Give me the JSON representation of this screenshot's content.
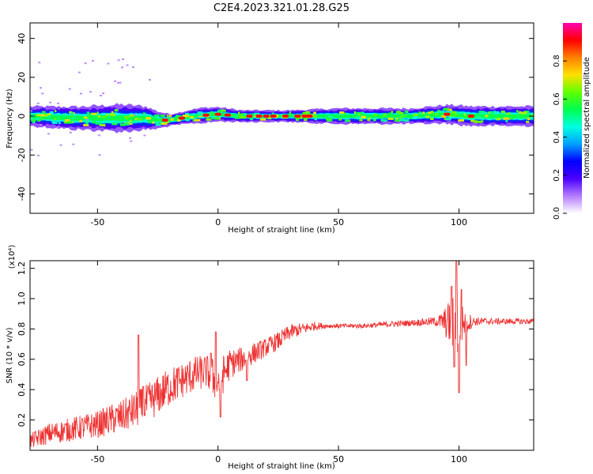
{
  "title": "C2E4.2023.321.01.28.G25",
  "chart_data": [
    {
      "type": "heatmap",
      "xlabel": "Height of straight line (km)",
      "ylabel": "Frequency (Hz)",
      "xlim": [
        -78,
        131
      ],
      "ylim": [
        -50,
        48
      ],
      "xticks": [
        -50,
        0,
        50,
        100
      ],
      "yticks": [
        -40,
        -20,
        0,
        20,
        40
      ],
      "band": {
        "center_hz": [
          [
            -78,
            0
          ],
          [
            -60,
            -1
          ],
          [
            -45,
            -1
          ],
          [
            -30,
            -1
          ],
          [
            -25,
            -2
          ],
          [
            -20,
            -2
          ],
          [
            -10,
            0
          ],
          [
            0,
            1
          ],
          [
            10,
            0
          ],
          [
            20,
            0
          ],
          [
            40,
            0
          ],
          [
            60,
            0
          ],
          [
            80,
            0
          ],
          [
            95,
            1
          ],
          [
            105,
            0
          ],
          [
            131,
            0
          ]
        ],
        "halfwidth_hz": [
          [
            -78,
            5
          ],
          [
            -55,
            6
          ],
          [
            -40,
            7
          ],
          [
            -30,
            6
          ],
          [
            -20,
            3
          ],
          [
            -5,
            4
          ],
          [
            10,
            3
          ],
          [
            30,
            3
          ],
          [
            50,
            4
          ],
          [
            80,
            4
          ],
          [
            100,
            5
          ],
          [
            131,
            5
          ]
        ]
      },
      "hot_spots_x": [
        -22,
        -15,
        -5,
        0,
        4,
        13,
        17,
        20,
        23,
        28,
        33,
        36,
        38,
        95,
        105
      ]
    },
    {
      "type": "colorbar",
      "label": "Normalized spectral amplitude",
      "range": [
        0,
        1
      ],
      "ticks": [
        "0.0",
        "0.2",
        "0.4",
        "0.6",
        "0.8"
      ],
      "tick_values": [
        0,
        0.2,
        0.4,
        0.6,
        0.8
      ],
      "colormap": [
        "#ffffff",
        "#b57cff",
        "#4a00ff",
        "#0000ff",
        "#00a0ff",
        "#00ffe0",
        "#00ff50",
        "#60ff00",
        "#ffe000",
        "#ff8000",
        "#ff0000",
        "#ff00b0"
      ]
    },
    {
      "type": "line",
      "xlabel": "Height of straight line (km)",
      "ylabel": "SNR (10 * v/v)",
      "y_multiplier": "(x10⁴)",
      "xlim": [
        -78,
        131
      ],
      "ylim": [
        0,
        1.25
      ],
      "xticks": [
        -50,
        0,
        50,
        100
      ],
      "yticks": [
        0.2,
        0.4,
        0.6,
        0.8,
        1.0,
        1.2
      ],
      "ytick_labels": [
        "0.2",
        "0.4",
        "0.6",
        "0.8",
        "1.0",
        "1.2"
      ],
      "color": "#ee3333",
      "envelope": [
        [
          -78,
          0.06,
          0.05
        ],
        [
          -70,
          0.11,
          0.07
        ],
        [
          -60,
          0.14,
          0.08
        ],
        [
          -50,
          0.17,
          0.09
        ],
        [
          -45,
          0.2,
          0.1
        ],
        [
          -40,
          0.22,
          0.11
        ],
        [
          -35,
          0.26,
          0.12
        ],
        [
          -30,
          0.3,
          0.13
        ],
        [
          -25,
          0.36,
          0.13
        ],
        [
          -20,
          0.42,
          0.13
        ],
        [
          -15,
          0.46,
          0.12
        ],
        [
          -10,
          0.5,
          0.12
        ],
        [
          -5,
          0.52,
          0.11
        ],
        [
          0,
          0.45,
          0.15
        ],
        [
          5,
          0.57,
          0.1
        ],
        [
          10,
          0.6,
          0.08
        ],
        [
          15,
          0.64,
          0.07
        ],
        [
          20,
          0.68,
          0.06
        ],
        [
          25,
          0.72,
          0.06
        ],
        [
          30,
          0.78,
          0.05
        ],
        [
          35,
          0.8,
          0.04
        ],
        [
          40,
          0.82,
          0.03
        ],
        [
          45,
          0.82,
          0.015
        ],
        [
          50,
          0.82,
          0.015
        ],
        [
          60,
          0.82,
          0.015
        ],
        [
          70,
          0.83,
          0.02
        ],
        [
          80,
          0.84,
          0.02
        ],
        [
          90,
          0.85,
          0.03
        ],
        [
          93,
          0.85,
          0.06
        ],
        [
          96,
          0.84,
          0.15
        ],
        [
          99,
          0.8,
          0.25
        ],
        [
          102,
          0.84,
          0.1
        ],
        [
          106,
          0.85,
          0.03
        ],
        [
          115,
          0.85,
          0.02
        ],
        [
          131,
          0.85,
          0.02
        ]
      ],
      "spikes": [
        [
          -33,
          0.76
        ],
        [
          -31,
          0.42
        ],
        [
          -3,
          0.64
        ],
        [
          -1,
          0.78
        ],
        [
          1,
          0.22
        ],
        [
          12,
          0.46
        ],
        [
          97,
          1.08
        ],
        [
          98,
          0.55
        ],
        [
          99,
          1.26
        ],
        [
          100,
          0.38
        ],
        [
          101,
          1.06
        ],
        [
          103,
          0.56
        ]
      ]
    }
  ]
}
